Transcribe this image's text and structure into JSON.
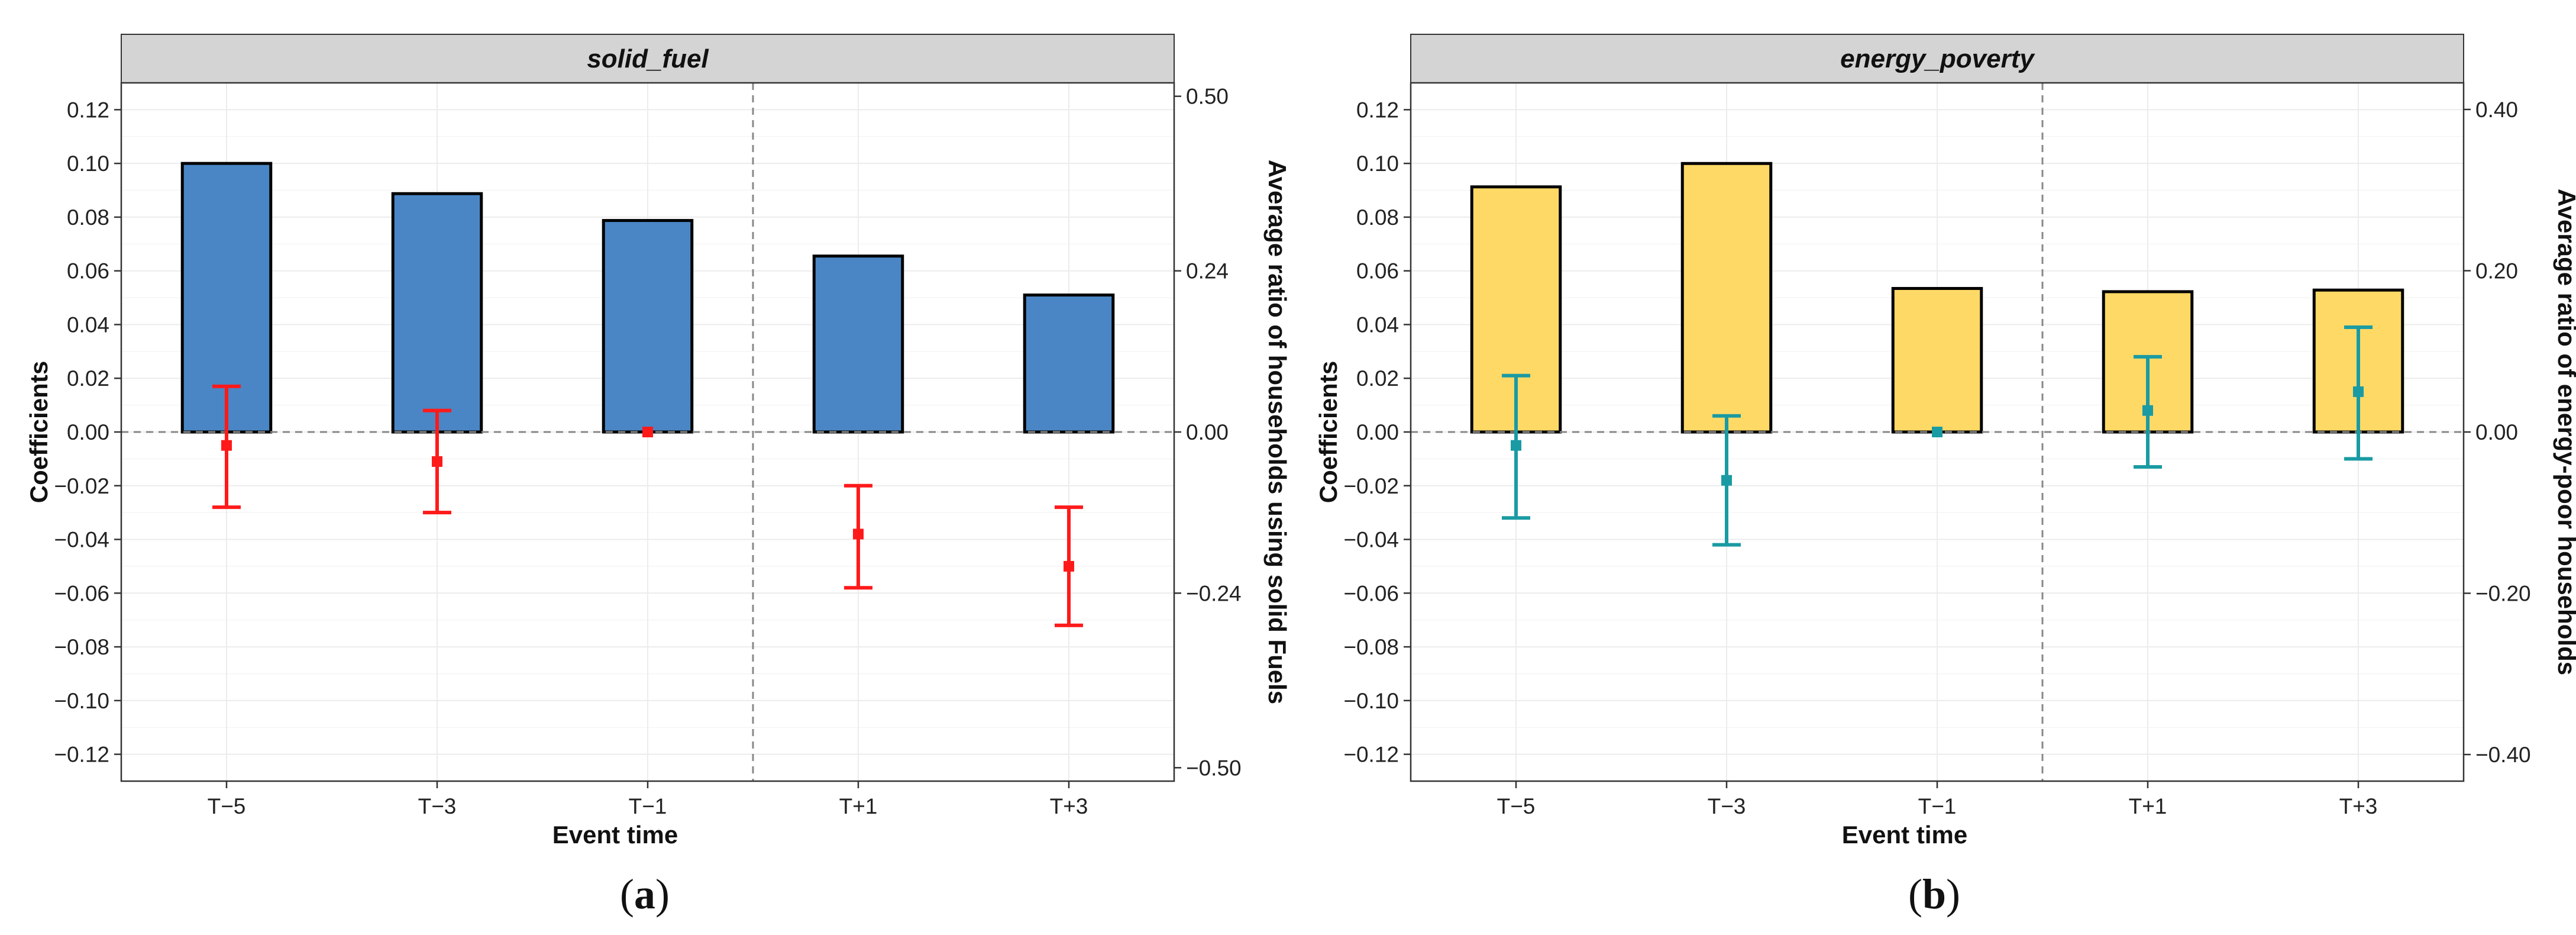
{
  "chart_data": [
    {
      "type": "bar",
      "panel_title": "solid_fuel",
      "caption_letter": "a",
      "categories": [
        "T−5",
        "T−3",
        "T−1",
        "T+1",
        "T+3"
      ],
      "xlabel": "Event time",
      "ylabel": "Coefficients",
      "ylabel_right": "Average ratio of households using solid Fuels",
      "ylim": [
        -0.13,
        0.13
      ],
      "yticks": [
        -0.12,
        -0.1,
        -0.08,
        -0.06,
        -0.04,
        -0.02,
        0.0,
        0.02,
        0.04,
        0.06,
        0.08,
        0.1,
        0.12
      ],
      "ytick_labels": [
        "−0.12",
        "−0.10",
        "−0.08",
        "−0.06",
        "−0.04",
        "−0.02",
        "0.00",
        "0.02",
        "0.04",
        "0.06",
        "0.08",
        "0.10",
        "0.12"
      ],
      "ylim_right": [
        -0.52,
        0.52
      ],
      "yticks_right": [
        -0.5,
        -0.24,
        0.0,
        0.24,
        0.5
      ],
      "ytick_labels_right": [
        "−0.50",
        "−0.24",
        "0.00",
        "0.24",
        "0.50"
      ],
      "bar_values_right_axis": [
        0.4,
        0.355,
        0.315,
        0.262,
        0.204
      ],
      "bar_color": "#4a86c5",
      "point_estimates": [
        -0.005,
        -0.011,
        0.0,
        -0.038,
        -0.05
      ],
      "ci_lower": [
        -0.028,
        -0.03,
        0.0,
        -0.058,
        -0.072
      ],
      "ci_upper": [
        0.017,
        0.008,
        0.0,
        -0.02,
        -0.028
      ],
      "point_color": "#ff1a1a",
      "event_line_between": [
        "T−1",
        "T+1"
      ]
    },
    {
      "type": "bar",
      "panel_title": "energy_poverty",
      "caption_letter": "b",
      "categories": [
        "T−5",
        "T−3",
        "T−1",
        "T+1",
        "T+3"
      ],
      "xlabel": "Event time",
      "ylabel": "Coefficients",
      "ylabel_right": "Average ratio of energy-poor households",
      "ylim": [
        -0.13,
        0.13
      ],
      "yticks": [
        -0.12,
        -0.1,
        -0.08,
        -0.06,
        -0.04,
        -0.02,
        0.0,
        0.02,
        0.04,
        0.06,
        0.08,
        0.1,
        0.12
      ],
      "ytick_labels": [
        "−0.12",
        "−0.10",
        "−0.08",
        "−0.06",
        "−0.04",
        "−0.02",
        "0.00",
        "0.02",
        "0.04",
        "0.06",
        "0.08",
        "0.10",
        "0.12"
      ],
      "ylim_right": [
        -0.433,
        0.433
      ],
      "yticks_right": [
        -0.4,
        -0.2,
        0.0,
        0.2,
        0.4
      ],
      "ytick_labels_right": [
        "−0.40",
        "−0.20",
        "0.00",
        "0.20",
        "0.40"
      ],
      "bar_values_right_axis": [
        0.304,
        0.333,
        0.178,
        0.174,
        0.176
      ],
      "bar_color": "#ffd966",
      "point_estimates": [
        -0.005,
        -0.018,
        0.0,
        0.008,
        0.015
      ],
      "ci_lower": [
        -0.032,
        -0.042,
        0.0,
        -0.013,
        -0.01
      ],
      "ci_upper": [
        0.021,
        0.006,
        0.0,
        0.028,
        0.039
      ],
      "point_color": "#1a9ba3",
      "event_line_between": [
        "T−1",
        "T+1"
      ]
    }
  ]
}
